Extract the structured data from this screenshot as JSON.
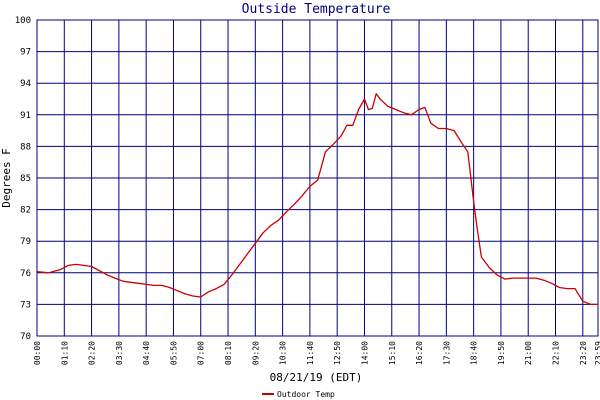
{
  "chart_data": {
    "type": "line",
    "title": "Outside Temperature",
    "ylabel": "Degrees F",
    "xlabel": "08/21/19 (EDT)",
    "ylim": [
      70,
      100
    ],
    "yticks": [
      70,
      73,
      76,
      79,
      82,
      85,
      88,
      91,
      94,
      97,
      100
    ],
    "xticks": [
      "00:00",
      "01:10",
      "02:20",
      "03:30",
      "04:40",
      "05:50",
      "07:00",
      "08:10",
      "09:20",
      "10:30",
      "11:40",
      "12:50",
      "14:00",
      "15:10",
      "16:20",
      "17:30",
      "18:40",
      "19:50",
      "21:00",
      "22:10",
      "23:20",
      "23:59"
    ],
    "grid": true,
    "legend": "bottom-left",
    "colors": {
      "line": "#cc0000",
      "grid": "#000080",
      "axis_text": "#000080",
      "background": "#ffffff"
    },
    "series": [
      {
        "name": "Outdoor Temp",
        "x": [
          "00:00",
          "00:30",
          "01:00",
          "01:20",
          "01:40",
          "02:00",
          "02:20",
          "02:40",
          "03:00",
          "03:20",
          "03:40",
          "04:00",
          "04:20",
          "04:40",
          "05:00",
          "05:20",
          "05:40",
          "06:00",
          "06:20",
          "06:40",
          "07:00",
          "07:20",
          "07:40",
          "08:00",
          "08:20",
          "08:40",
          "09:00",
          "09:20",
          "09:40",
          "10:00",
          "10:20",
          "10:40",
          "11:00",
          "11:20",
          "11:40",
          "12:00",
          "12:20",
          "12:40",
          "13:00",
          "13:15",
          "13:30",
          "13:45",
          "14:00",
          "14:10",
          "14:20",
          "14:30",
          "14:40",
          "15:00",
          "15:20",
          "15:40",
          "16:00",
          "16:20",
          "16:35",
          "16:50",
          "17:10",
          "17:30",
          "17:50",
          "18:10",
          "18:25",
          "18:40",
          "18:50",
          "19:00",
          "19:20",
          "19:40",
          "20:00",
          "20:20",
          "20:40",
          "21:00",
          "21:20",
          "21:40",
          "22:00",
          "22:20",
          "22:40",
          "23:00",
          "23:20",
          "23:40",
          "23:59"
        ],
        "values": [
          76.1,
          76.0,
          76.3,
          76.7,
          76.8,
          76.7,
          76.6,
          76.2,
          75.8,
          75.5,
          75.2,
          75.1,
          75.0,
          74.9,
          74.8,
          74.8,
          74.6,
          74.3,
          74.0,
          73.8,
          73.7,
          74.2,
          74.5,
          74.9,
          75.8,
          76.8,
          77.8,
          78.8,
          79.8,
          80.5,
          81.0,
          81.8,
          82.5,
          83.3,
          84.2,
          84.8,
          87.5,
          88.2,
          89.0,
          90.0,
          90.0,
          91.5,
          92.5,
          91.5,
          91.6,
          93.0,
          92.5,
          91.8,
          91.5,
          91.2,
          91.0,
          91.5,
          91.7,
          90.2,
          89.7,
          89.7,
          89.5,
          88.3,
          87.5,
          82.8,
          80.0,
          77.5,
          76.5,
          75.8,
          75.4,
          75.5,
          75.5,
          75.5,
          75.5,
          75.3,
          75.0,
          74.6,
          74.5,
          74.5,
          73.3,
          73.0,
          73.0
        ]
      }
    ]
  }
}
